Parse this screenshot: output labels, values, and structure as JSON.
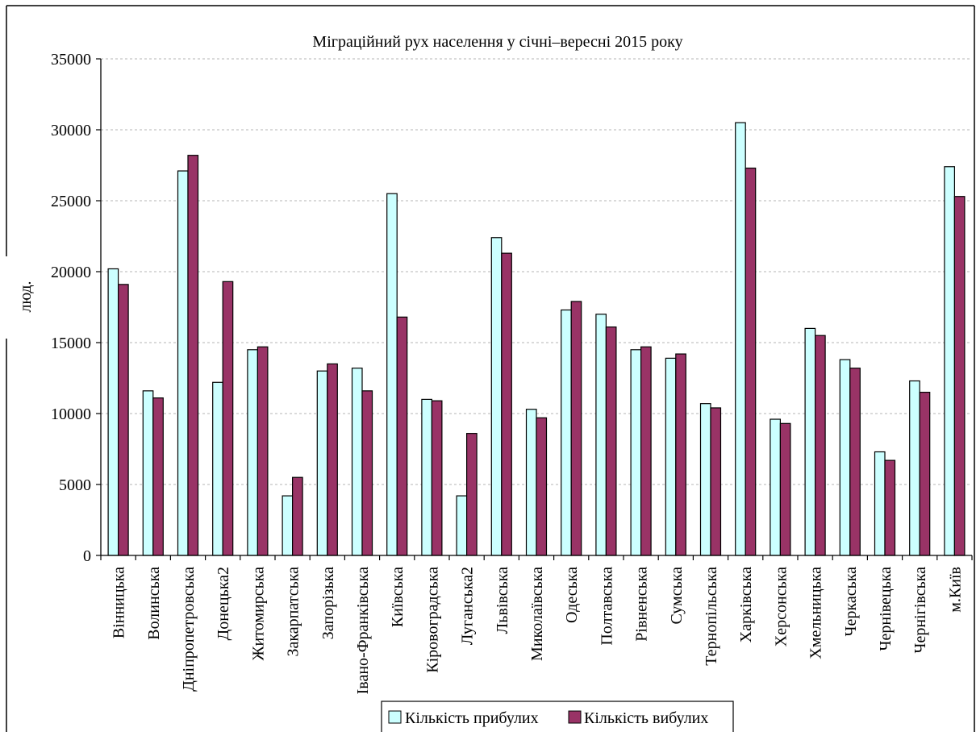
{
  "chart_data": {
    "type": "bar",
    "title": "Міграційний рух населення у січні–вересні 2015 року",
    "ylabel": "люд.",
    "xlabel": "",
    "ylim": [
      0,
      35000
    ],
    "yticks": [
      0,
      5000,
      10000,
      15000,
      20000,
      25000,
      30000,
      35000
    ],
    "ytick_labels": [
      "0",
      "5000",
      "10000",
      "15000",
      "20000",
      "25000",
      "30000",
      "35000"
    ],
    "grid": "horizontal dashed",
    "legend_position": "bottom",
    "categories": [
      "Вінницька",
      "Волинська",
      "Дніпропетровська",
      "Донецька2",
      "Житомирська",
      "Закарпатська",
      "Запорізька",
      "Івано-Франківська",
      "Київська",
      "Кіровоградська",
      "Луганська2",
      "Львівська",
      "Миколаївська",
      "Одеська",
      "Полтавська",
      "Рівненська",
      "Сумська",
      "Тернопільська",
      "Харківська",
      "Херсонська",
      "Хмельницька",
      "Черкаська",
      "Чернівецька",
      "Чернігівська",
      "м.Київ"
    ],
    "series": [
      {
        "name": "Кількість прибулих",
        "color": "#ccffff",
        "values": [
          20200,
          11600,
          27100,
          12200,
          14500,
          4200,
          13000,
          13200,
          25500,
          11000,
          4200,
          22400,
          10300,
          17300,
          17000,
          14500,
          13900,
          10700,
          30500,
          9600,
          16000,
          13800,
          7300,
          12300,
          27400
        ]
      },
      {
        "name": "Кількість вибулих",
        "color": "#993366",
        "values": [
          19100,
          11100,
          28200,
          19300,
          14700,
          5500,
          13500,
          11600,
          16800,
          10900,
          8600,
          21300,
          9700,
          17900,
          16100,
          14700,
          14200,
          10400,
          27300,
          9300,
          15500,
          13200,
          6700,
          11500,
          25300
        ]
      }
    ]
  }
}
